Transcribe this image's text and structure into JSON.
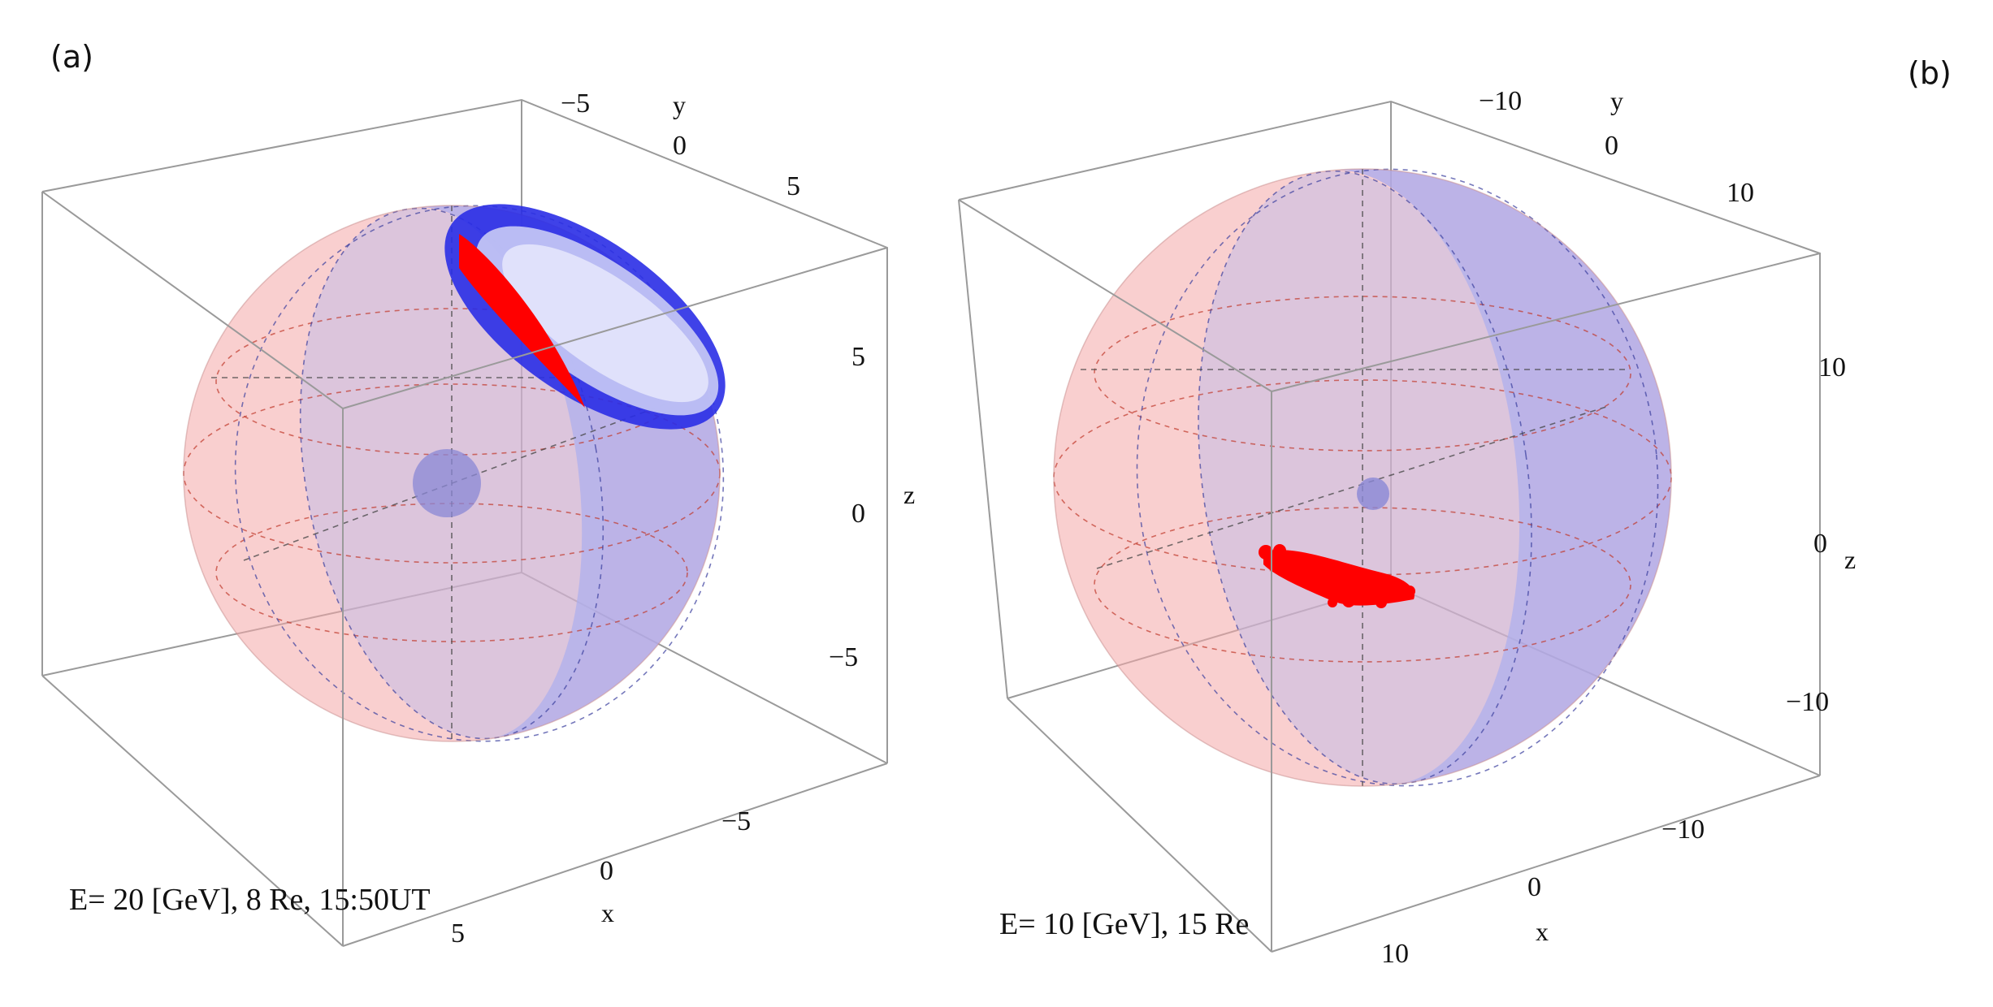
{
  "panels": [
    {
      "label": "(a)",
      "caption": "E= 20 [GeV], 8 Re, 15:50UT",
      "axes": {
        "y": {
          "name": "y",
          "ticks": [
            "−5",
            "0",
            "5"
          ]
        },
        "z": {
          "name": "z",
          "ticks": [
            "5",
            "0",
            "−5"
          ]
        },
        "x": {
          "name": "x",
          "ticks": [
            "−5",
            "0",
            "5"
          ]
        }
      }
    },
    {
      "label": "(b)",
      "caption": "E= 10 [GeV], 15 Re",
      "axes": {
        "y": {
          "name": "y",
          "ticks": [
            "−10",
            "0",
            "10"
          ]
        },
        "z": {
          "name": "z",
          "ticks": [
            "10",
            "0",
            "−10"
          ]
        },
        "x": {
          "name": "x",
          "ticks": [
            "−10",
            "0",
            "10"
          ]
        }
      }
    }
  ],
  "colors": {
    "sphere_red": "#f4a7a7",
    "sphere_blue": "#a7a9ef",
    "particles_red": "#ff0000",
    "particles_blue": "#0000ff",
    "earth": "#8a87d6"
  }
}
